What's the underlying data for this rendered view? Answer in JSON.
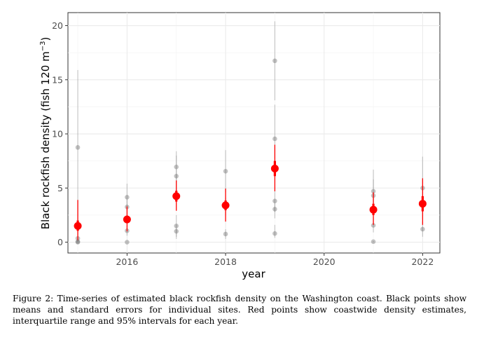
{
  "chart_data": {
    "type": "scatter",
    "xlabel": "year",
    "ylabel": "Black rockfish density (fish 120 m",
    "ylabel_sup": "−3",
    "ylabel_close": ")",
    "xlim": [
      2014.8,
      2022.35
    ],
    "ylim": [
      -1.0,
      21.2
    ],
    "x_ticks": [
      2016,
      2018,
      2020,
      2022
    ],
    "y_ticks": [
      0,
      5,
      10,
      15,
      20
    ],
    "grid": true,
    "series": [
      {
        "name": "sites",
        "color": "#9e9e9e",
        "points": [
          {
            "x": 2015,
            "y": 8.75,
            "lo": 1.7,
            "hi": 15.9
          },
          {
            "x": 2015,
            "y": 0.35,
            "lo": 0.0,
            "hi": 1.2
          },
          {
            "x": 2015,
            "y": 0.05,
            "lo": 0.0,
            "hi": 0.15
          },
          {
            "x": 2015,
            "y": 0.0,
            "lo": 0.0,
            "hi": 0.0
          },
          {
            "x": 2016,
            "y": 4.15,
            "lo": 2.9,
            "hi": 5.4
          },
          {
            "x": 2016,
            "y": 3.25,
            "lo": 2.4,
            "hi": 4.1
          },
          {
            "x": 2016,
            "y": 1.05,
            "lo": 0.6,
            "hi": 1.5
          },
          {
            "x": 2016,
            "y": 0.0,
            "lo": 0.0,
            "hi": 0.0
          },
          {
            "x": 2017,
            "y": 6.95,
            "lo": 5.5,
            "hi": 8.4
          },
          {
            "x": 2017,
            "y": 6.1,
            "lo": 4.2,
            "hi": 8.0
          },
          {
            "x": 2017,
            "y": 1.5,
            "lo": 0.5,
            "hi": 2.5
          },
          {
            "x": 2017,
            "y": 1.0,
            "lo": 0.3,
            "hi": 1.6
          },
          {
            "x": 2018,
            "y": 6.55,
            "lo": 4.6,
            "hi": 8.5
          },
          {
            "x": 2018,
            "y": 3.3,
            "lo": 2.5,
            "hi": 4.1
          },
          {
            "x": 2018,
            "y": 0.75,
            "lo": 0.3,
            "hi": 1.2
          },
          {
            "x": 2019,
            "y": 16.75,
            "lo": 13.1,
            "hi": 20.4
          },
          {
            "x": 2019,
            "y": 9.55,
            "lo": 7.7,
            "hi": 12.7
          },
          {
            "x": 2019,
            "y": 3.8,
            "lo": 2.8,
            "hi": 4.8
          },
          {
            "x": 2019,
            "y": 3.05,
            "lo": 2.2,
            "hi": 3.9
          },
          {
            "x": 2019,
            "y": 0.8,
            "lo": 0.4,
            "hi": 1.6
          },
          {
            "x": 2021,
            "y": 4.7,
            "lo": 3.1,
            "hi": 6.7
          },
          {
            "x": 2021,
            "y": 4.3,
            "lo": 2.7,
            "hi": 5.8
          },
          {
            "x": 2021,
            "y": 1.55,
            "lo": 0.9,
            "hi": 2.3
          },
          {
            "x": 2021,
            "y": 0.05,
            "lo": 0.0,
            "hi": 0.1
          },
          {
            "x": 2022,
            "y": 5.0,
            "lo": 2.1,
            "hi": 7.9
          },
          {
            "x": 2022,
            "y": 1.2,
            "lo": 0.5,
            "hi": 1.9
          }
        ]
      },
      {
        "name": "coastwide",
        "color": "#ff0000",
        "points": [
          {
            "x": 2015,
            "y": 1.5,
            "iqr": [
              1.05,
              2.0
            ],
            "ci95": [
              0.2,
              3.9
            ]
          },
          {
            "x": 2016,
            "y": 2.1,
            "iqr": [
              1.75,
              2.45
            ],
            "ci95": [
              1.0,
              3.3
            ]
          },
          {
            "x": 2017,
            "y": 4.25,
            "iqr": [
              3.75,
              4.75
            ],
            "ci95": [
              2.9,
              5.7
            ]
          },
          {
            "x": 2018,
            "y": 3.4,
            "iqr": [
              2.95,
              3.85
            ],
            "ci95": [
              1.9,
              4.95
            ]
          },
          {
            "x": 2019,
            "y": 6.8,
            "iqr": [
              6.1,
              7.5
            ],
            "ci95": [
              4.7,
              9.0
            ]
          },
          {
            "x": 2021,
            "y": 3.0,
            "iqr": [
              2.5,
              3.55
            ],
            "ci95": [
              1.6,
              4.6
            ]
          },
          {
            "x": 2022,
            "y": 3.55,
            "iqr": [
              2.85,
              4.25
            ],
            "ci95": [
              1.6,
              5.9
            ]
          }
        ]
      }
    ]
  },
  "caption": {
    "text": "Figure 2:   Time-series of estimated black rockfish density on the Washington coast.  Black points show means and standard errors for individual sites. Red points show coastwide density estimates, interquartile range and 95% intervals for each year."
  }
}
